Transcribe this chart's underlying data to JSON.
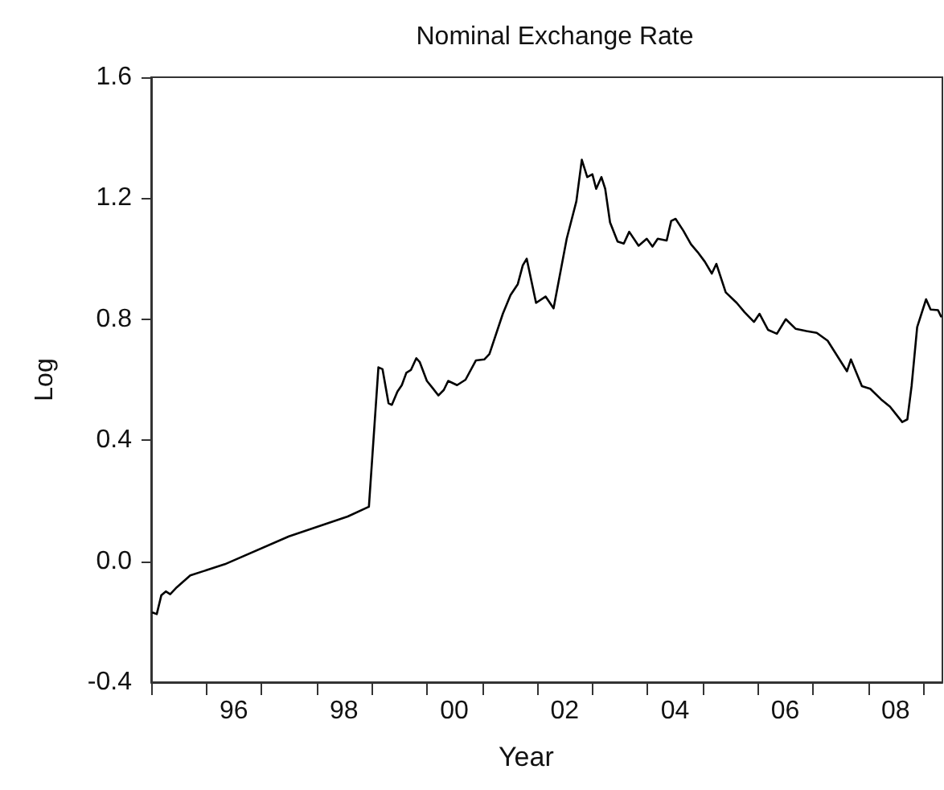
{
  "chart_data": {
    "type": "line",
    "title": "Nominal Exchange Rate",
    "xlabel": "Year",
    "ylabel": "Log",
    "x": [
      "1995-01-12",
      "1995-02-07",
      "1995-03-09",
      "1995-04-08",
      "1995-05-07",
      "1995-06-20",
      "1995-09-17",
      "1996-05-03",
      "1997-07-01",
      "1998-07-26",
      "1998-12-13",
      "1999-02-14",
      "1999-03-13",
      "1999-04-22",
      "1999-05-14",
      "1999-06-20",
      "1999-07-19",
      "1999-08-18",
      "1999-09-17",
      "1999-10-23",
      "1999-11-14",
      "2000-01-01",
      "2000-02-07",
      "2000-03-17",
      "2000-04-22",
      "2000-05-21",
      "2000-07-19",
      "2000-09-13",
      "2000-11-21",
      "2001-01-15",
      "2001-02-18",
      "2001-05-18",
      "2001-07-08",
      "2001-08-25",
      "2001-09-27",
      "2001-10-23",
      "2001-12-24",
      "2002-02-25",
      "2002-04-19",
      "2002-07-15",
      "2002-09-17",
      "2002-10-23",
      "2002-11-28",
      "2003-01-01",
      "2003-01-26",
      "2003-03-02",
      "2003-03-27",
      "2003-04-28",
      "2003-06-17",
      "2003-07-28",
      "2003-09-02",
      "2003-11-03",
      "2003-12-27",
      "2004-02-03",
      "2004-03-09",
      "2004-05-07",
      "2004-06-06",
      "2004-07-05",
      "2004-08-25",
      "2004-10-15",
      "2004-11-28",
      "2005-01-15",
      "2005-03-02",
      "2005-04-01",
      "2005-06-02",
      "2005-08-14",
      "2005-10-05",
      "2005-12-06",
      "2006-01-12",
      "2006-03-09",
      "2006-05-07",
      "2006-07-05",
      "2006-09-09",
      "2006-11-18",
      "2007-01-26",
      "2007-04-08",
      "2007-08-14",
      "2007-09-09",
      "2007-11-21",
      "2008-01-15",
      "2008-03-27",
      "2008-05-25",
      "2008-08-14",
      "2008-09-17",
      "2008-10-15",
      "2008-11-21",
      "2009-01-19",
      "2009-02-18",
      "2009-04-08",
      "2009-04-28"
    ],
    "series": [
      {
        "color": "#000000",
        "values": [
          -0.17,
          -0.175,
          -0.113,
          -0.1,
          -0.109,
          -0.086,
          -0.047,
          -0.01,
          0.082,
          0.148,
          0.18,
          0.641,
          0.635,
          0.522,
          0.517,
          0.561,
          0.582,
          0.623,
          0.632,
          0.671,
          0.659,
          0.596,
          0.573,
          0.548,
          0.566,
          0.596,
          0.582,
          0.6,
          0.664,
          0.667,
          0.685,
          0.818,
          0.88,
          0.916,
          0.978,
          1.0,
          0.854,
          0.875,
          0.836,
          1.066,
          1.19,
          1.327,
          1.27,
          1.279,
          1.231,
          1.27,
          1.231,
          1.12,
          1.057,
          1.05,
          1.089,
          1.043,
          1.066,
          1.04,
          1.066,
          1.06,
          1.125,
          1.132,
          1.093,
          1.048,
          1.022,
          0.99,
          0.951,
          0.983,
          0.889,
          0.854,
          0.823,
          0.791,
          0.818,
          0.765,
          0.752,
          0.8,
          0.768,
          0.761,
          0.755,
          0.729,
          0.628,
          0.667,
          0.579,
          0.57,
          0.535,
          0.511,
          0.46,
          0.469,
          0.579,
          0.774,
          0.866,
          0.832,
          0.83,
          0.809
        ]
      }
    ],
    "xlim": [
      "1995-01-01",
      "2009-05-07"
    ],
    "xticks": [
      {
        "value": "1995-01-01",
        "label": null
      },
      {
        "value": "1996-01-01",
        "label": null
      },
      {
        "value": "1996-07-01",
        "label": "96"
      },
      {
        "value": "1997-01-01",
        "label": null
      },
      {
        "value": "1998-01-01",
        "label": null
      },
      {
        "value": "1998-07-01",
        "label": "98"
      },
      {
        "value": "1999-01-01",
        "label": null
      },
      {
        "value": "2000-01-01",
        "label": null
      },
      {
        "value": "2000-07-01",
        "label": "00"
      },
      {
        "value": "2001-01-01",
        "label": null
      },
      {
        "value": "2002-01-01",
        "label": null
      },
      {
        "value": "2002-07-01",
        "label": "02"
      },
      {
        "value": "2003-01-01",
        "label": null
      },
      {
        "value": "2004-01-01",
        "label": null
      },
      {
        "value": "2004-07-01",
        "label": "04"
      },
      {
        "value": "2005-01-01",
        "label": null
      },
      {
        "value": "2006-01-01",
        "label": null
      },
      {
        "value": "2006-07-01",
        "label": "06"
      },
      {
        "value": "2007-01-01",
        "label": null
      },
      {
        "value": "2008-01-01",
        "label": null
      },
      {
        "value": "2008-07-01",
        "label": "08"
      },
      {
        "value": "2009-01-01",
        "label": null
      }
    ],
    "ylim": [
      -0.4,
      1.6
    ],
    "yticks": [
      {
        "value": -0.4,
        "label": "-0.4"
      },
      {
        "value": 0,
        "label": "0.0"
      },
      {
        "value": 0.4,
        "label": "0.4"
      },
      {
        "value": 0.8,
        "label": "0.8"
      },
      {
        "value": 1.2,
        "label": "1.2"
      },
      {
        "value": 1.6,
        "label": "1.6"
      }
    ],
    "marker": "none",
    "line_style": "solid"
  }
}
